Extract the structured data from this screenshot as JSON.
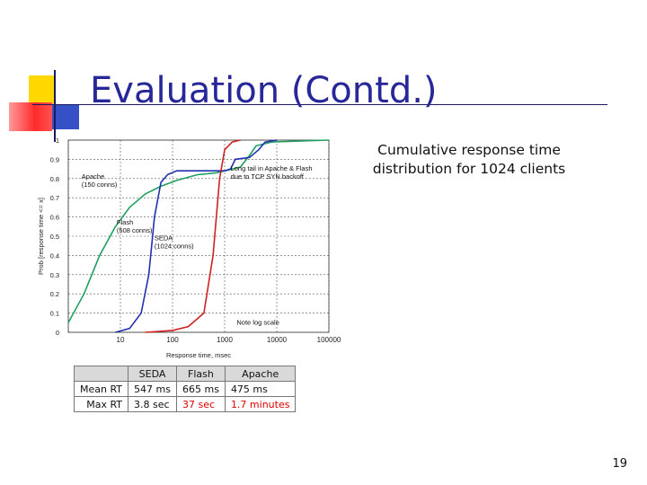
{
  "slide": {
    "title": "Evaluation (Contd.)",
    "caption": "Cumulative response time distribution for 1024 clients",
    "page_number": "19"
  },
  "colors": {
    "title": "#27279a",
    "seda": "#d02020",
    "flash": "#2030b0",
    "apache": "#20a060",
    "highlight": "#e00000"
  },
  "chart_data": {
    "type": "line",
    "title": "",
    "xlabel": "Response time, msec",
    "ylabel": "Prob [response time <= x]",
    "xscale": "log",
    "xlim": [
      1,
      100000
    ],
    "ylim": [
      0,
      1
    ],
    "grid": true,
    "x_ticks": [
      "10",
      "100",
      "1000",
      "10000",
      "100000"
    ],
    "y_ticks": [
      "0",
      "0.1",
      "0.2",
      "0.3",
      "0.4",
      "0.5",
      "0.6",
      "0.7",
      "0.8",
      "0.9",
      "1"
    ],
    "series": [
      {
        "name": "Apache",
        "color": "#20a060",
        "points": [
          [
            1,
            0.05
          ],
          [
            2,
            0.2
          ],
          [
            4,
            0.4
          ],
          [
            8,
            0.55
          ],
          [
            15,
            0.65
          ],
          [
            30,
            0.72
          ],
          [
            60,
            0.76
          ],
          [
            120,
            0.79
          ],
          [
            300,
            0.82
          ],
          [
            700,
            0.83
          ],
          [
            1000,
            0.84
          ],
          [
            2000,
            0.86
          ],
          [
            3000,
            0.92
          ],
          [
            4000,
            0.97
          ],
          [
            8000,
            0.99
          ],
          [
            100000,
            1.0
          ]
        ]
      },
      {
        "name": "Flash",
        "color": "#2030b0",
        "points": [
          [
            8,
            0.0
          ],
          [
            15,
            0.02
          ],
          [
            25,
            0.1
          ],
          [
            35,
            0.3
          ],
          [
            45,
            0.6
          ],
          [
            60,
            0.78
          ],
          [
            80,
            0.82
          ],
          [
            120,
            0.84
          ],
          [
            500,
            0.84
          ],
          [
            1000,
            0.84
          ],
          [
            1300,
            0.85
          ],
          [
            1600,
            0.9
          ],
          [
            3000,
            0.91
          ],
          [
            4500,
            0.95
          ],
          [
            6000,
            0.99
          ],
          [
            10000,
            1.0
          ]
        ]
      },
      {
        "name": "SEDA",
        "color": "#d02020",
        "points": [
          [
            30,
            0.0
          ],
          [
            100,
            0.01
          ],
          [
            200,
            0.03
          ],
          [
            400,
            0.1
          ],
          [
            600,
            0.4
          ],
          [
            800,
            0.8
          ],
          [
            1000,
            0.95
          ],
          [
            1400,
            0.99
          ],
          [
            2000,
            1.0
          ]
        ]
      }
    ],
    "annotations": [
      {
        "text": "Apache",
        "sub": "(150 conns)"
      },
      {
        "text": "Flash",
        "sub": "(508 conns)"
      },
      {
        "text": "SEDA",
        "sub": "(1024 conns)"
      },
      {
        "text": "Long tail in Apache & Flash",
        "sub": "due to TCP SYN backoff"
      },
      {
        "text": "Note log scale"
      }
    ]
  },
  "table": {
    "headers": [
      "",
      "SEDA",
      "Flash",
      "Apache"
    ],
    "rows": [
      {
        "label": "Mean RT",
        "seda": "547 ms",
        "flash": "665 ms",
        "apache": "475 ms"
      },
      {
        "label": "Max RT",
        "seda": "3.8 sec",
        "flash": "37 sec",
        "apache": "1.7 minutes"
      }
    ]
  }
}
